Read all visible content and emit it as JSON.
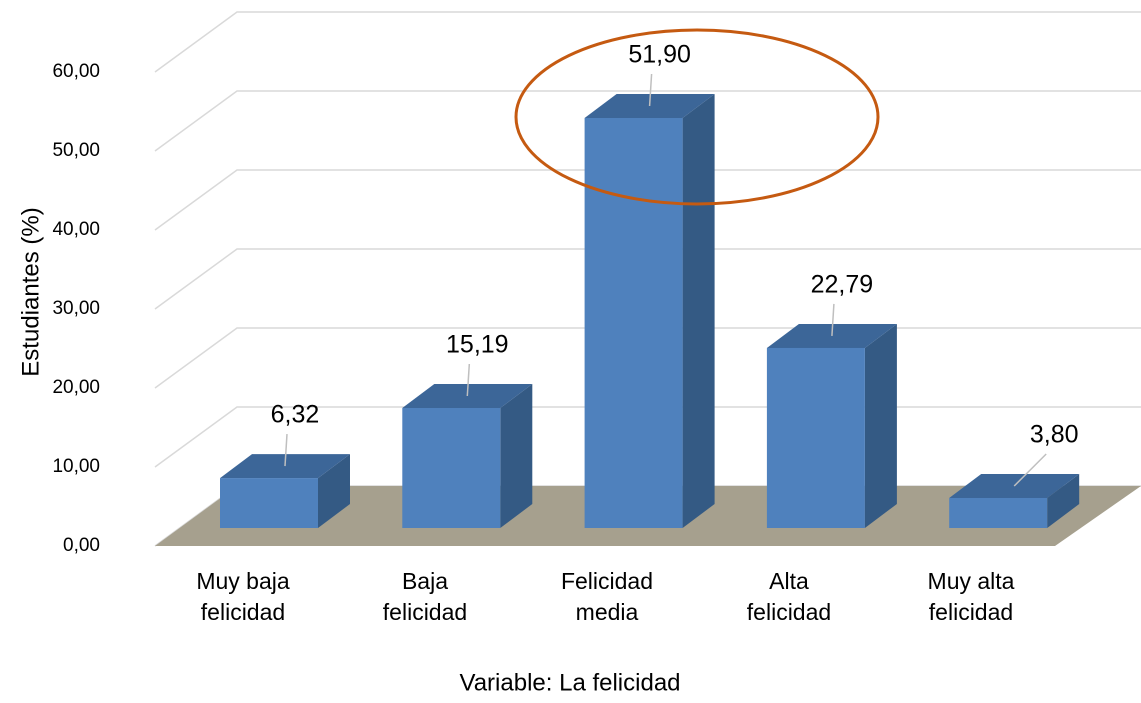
{
  "chart_data": {
    "type": "bar3d",
    "categories": [
      [
        "Muy baja",
        "felicidad"
      ],
      [
        "Baja",
        "felicidad"
      ],
      [
        "Felicidad",
        "media"
      ],
      [
        "Alta",
        "felicidad"
      ],
      [
        "Muy alta",
        "felicidad"
      ]
    ],
    "values": [
      6.32,
      15.19,
      51.9,
      22.79,
      3.8
    ],
    "value_labels": [
      "6,32",
      "15,19",
      "51,90",
      "22,79",
      "3,80"
    ],
    "color": "#4f81bd",
    "ylim": [
      0,
      60
    ],
    "yticks": [
      {
        "value": 0,
        "label": "0,00"
      },
      {
        "value": 10,
        "label": "10,00"
      },
      {
        "value": 20,
        "label": "20,00"
      },
      {
        "value": 30,
        "label": "30,00"
      },
      {
        "value": 40,
        "label": "40,00"
      },
      {
        "value": 50,
        "label": "50,00"
      },
      {
        "value": 60,
        "label": "60,00"
      }
    ],
    "grid": true,
    "y_label": "Estudiantes  (%)",
    "x_label": "Variable: La felicidad"
  }
}
